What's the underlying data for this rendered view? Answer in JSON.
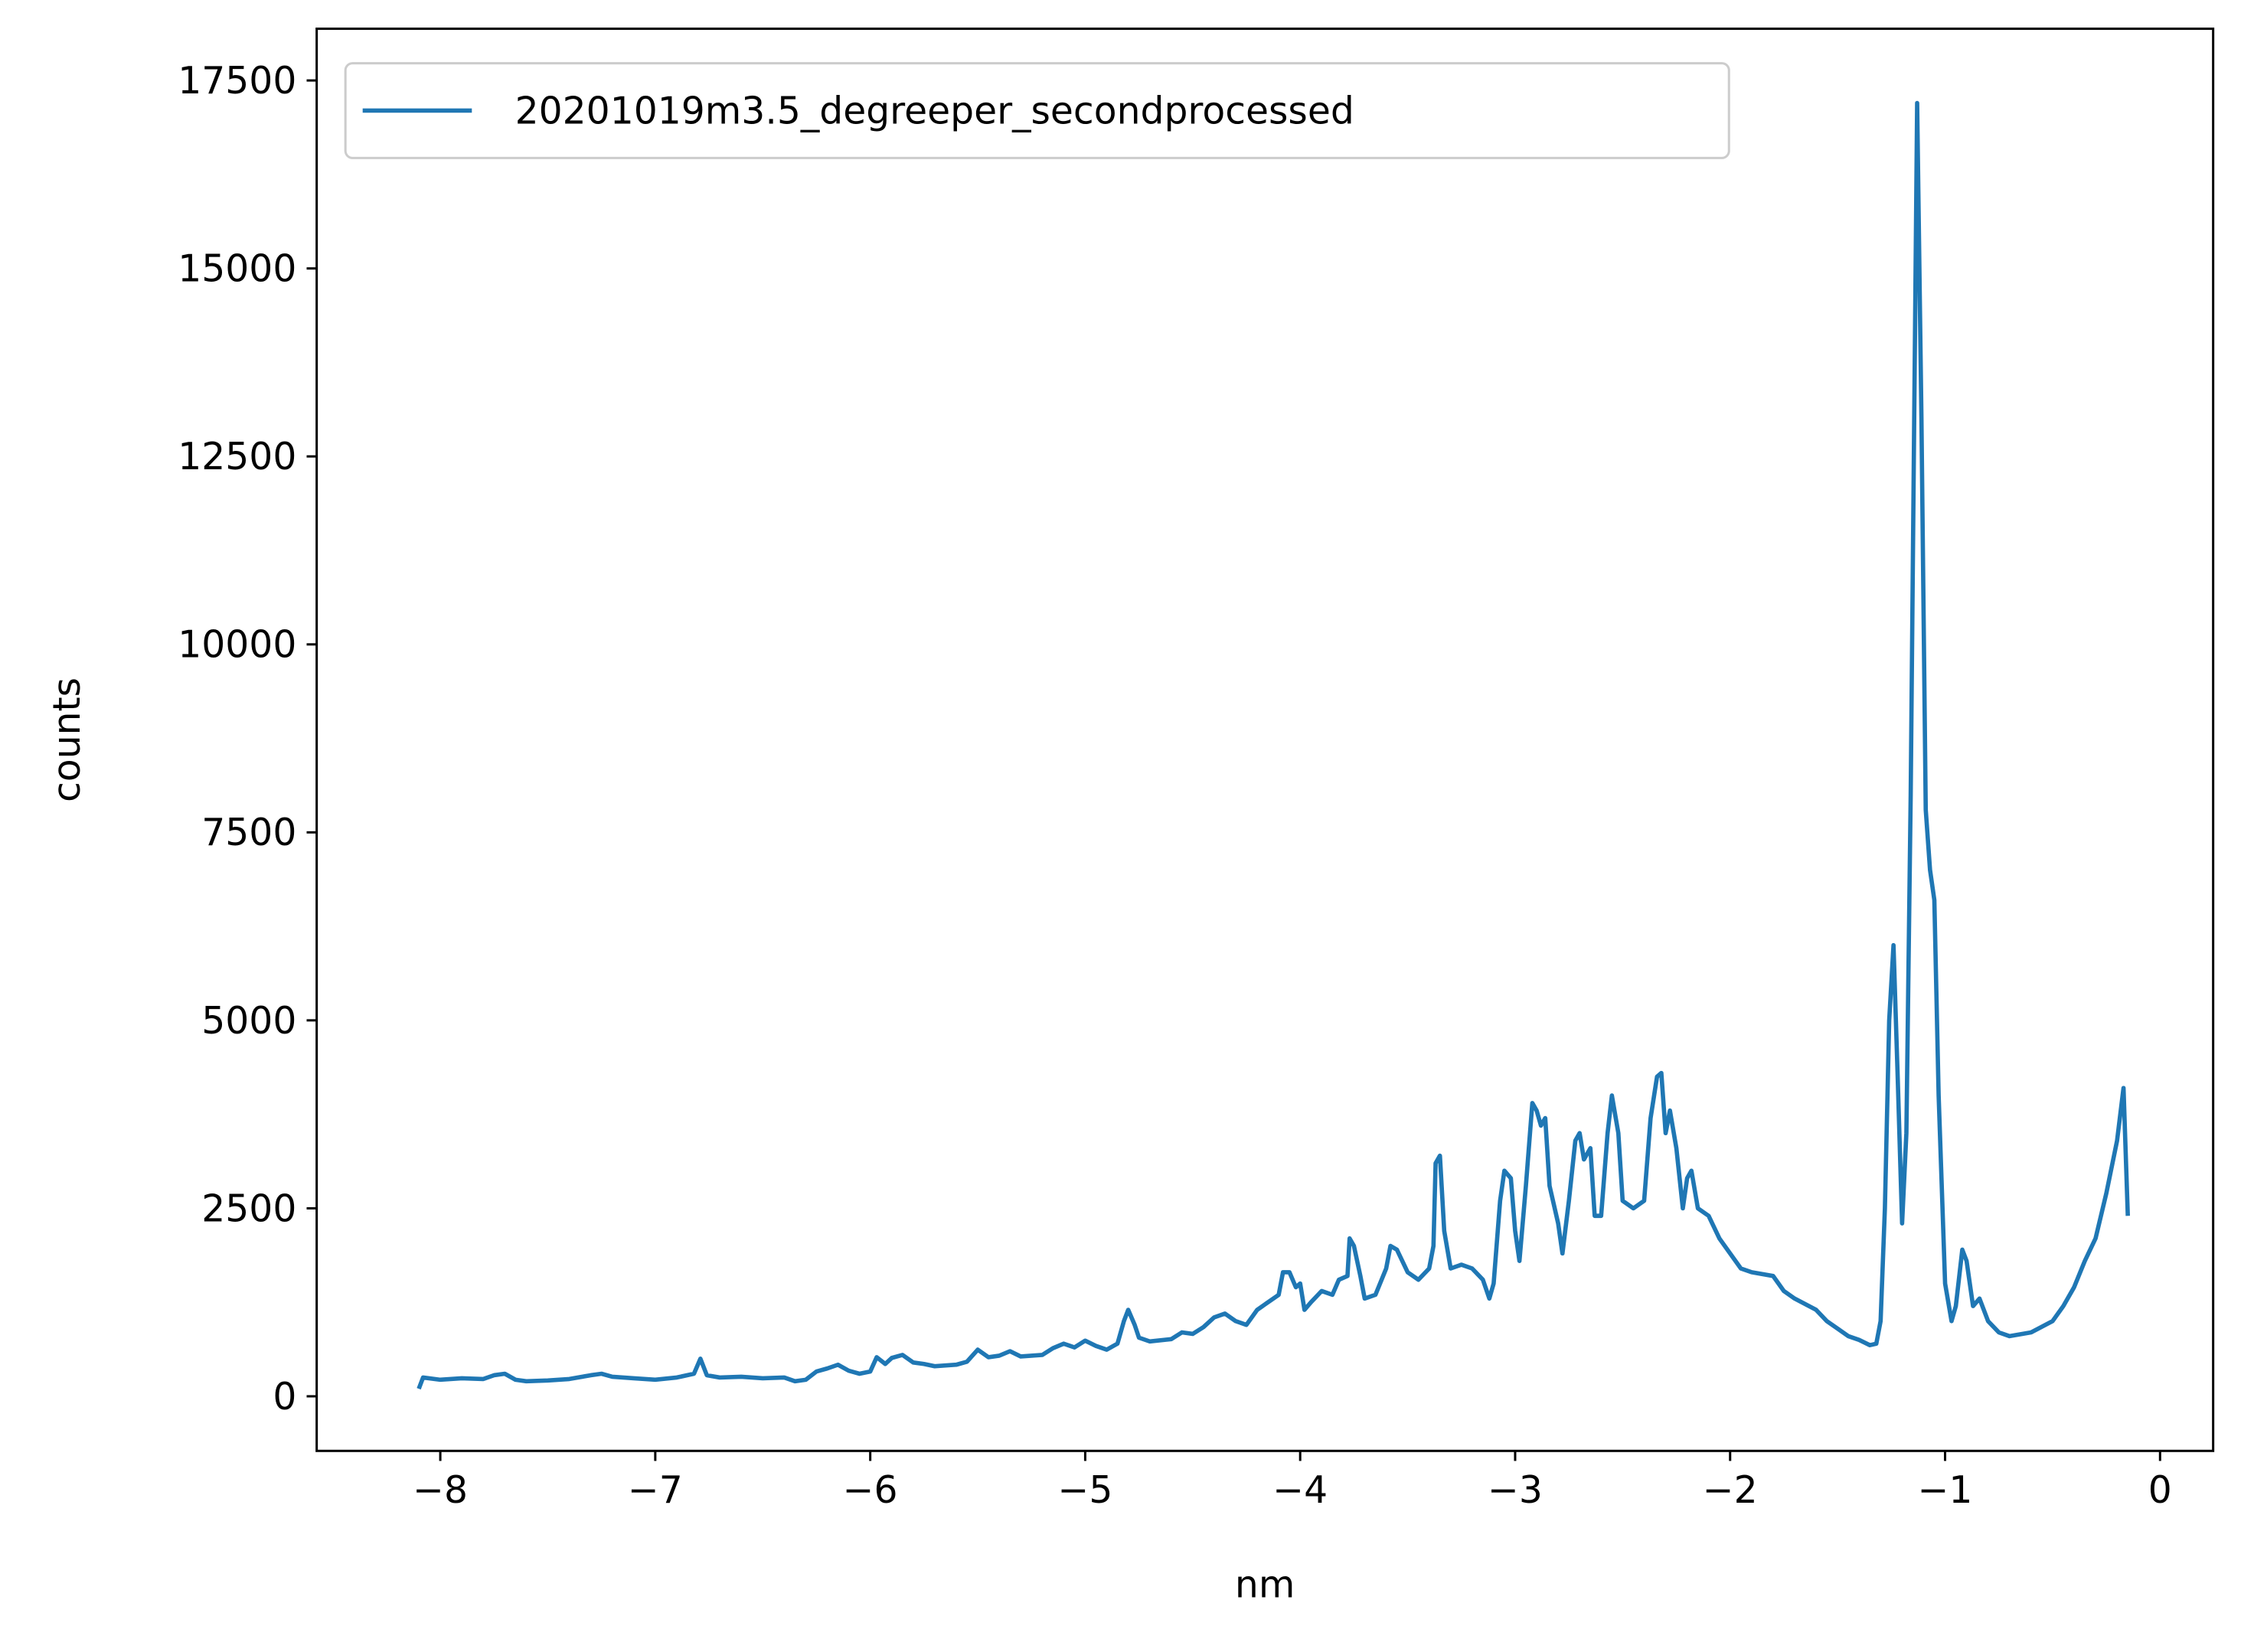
{
  "chart_data": {
    "type": "line",
    "xlabel": "nm",
    "ylabel": "counts",
    "xlim": [
      -8.575,
      0.247
    ],
    "ylim": [
      -726,
      18188
    ],
    "xticks": [
      {
        "value": -8,
        "label": "−8"
      },
      {
        "value": -7,
        "label": "−7"
      },
      {
        "value": -6,
        "label": "−6"
      },
      {
        "value": -5,
        "label": "−5"
      },
      {
        "value": -4,
        "label": "−4"
      },
      {
        "value": -3,
        "label": "−3"
      },
      {
        "value": -2,
        "label": "−2"
      },
      {
        "value": -1,
        "label": "−1"
      },
      0
    ],
    "yticks": [
      0,
      2500,
      5000,
      7500,
      10000,
      12500,
      15000,
      17500
    ],
    "legend": "upper left",
    "x": [
      -8.1,
      -8.08,
      -8.0,
      -7.9,
      -7.8,
      -7.75,
      -7.7,
      -7.65,
      -7.6,
      -7.5,
      -7.4,
      -7.3,
      -7.25,
      -7.2,
      -7.1,
      -7.0,
      -6.9,
      -6.82,
      -6.79,
      -6.76,
      -6.7,
      -6.6,
      -6.5,
      -6.4,
      -6.35,
      -6.3,
      -6.25,
      -6.2,
      -6.15,
      -6.1,
      -6.05,
      -6.0,
      -5.97,
      -5.93,
      -5.9,
      -5.85,
      -5.8,
      -5.75,
      -5.7,
      -5.6,
      -5.55,
      -5.5,
      -5.45,
      -5.4,
      -5.35,
      -5.3,
      -5.2,
      -5.15,
      -5.1,
      -5.05,
      -5.0,
      -4.95,
      -4.9,
      -4.85,
      -4.82,
      -4.8,
      -4.77,
      -4.75,
      -4.7,
      -4.6,
      -4.55,
      -4.5,
      -4.45,
      -4.4,
      -4.35,
      -4.3,
      -4.25,
      -4.2,
      -4.15,
      -4.1,
      -4.08,
      -4.05,
      -4.02,
      -4.0,
      -3.98,
      -3.95,
      -3.9,
      -3.85,
      -3.82,
      -3.78,
      -3.77,
      -3.75,
      -3.72,
      -3.7,
      -3.65,
      -3.6,
      -3.58,
      -3.55,
      -3.5,
      -3.45,
      -3.4,
      -3.38,
      -3.37,
      -3.35,
      -3.33,
      -3.3,
      -3.25,
      -3.2,
      -3.15,
      -3.12,
      -3.1,
      -3.07,
      -3.05,
      -3.02,
      -3.0,
      -2.98,
      -2.95,
      -2.92,
      -2.9,
      -2.88,
      -2.86,
      -2.84,
      -2.8,
      -2.78,
      -2.75,
      -2.72,
      -2.7,
      -2.68,
      -2.65,
      -2.63,
      -2.6,
      -2.57,
      -2.55,
      -2.52,
      -2.5,
      -2.45,
      -2.4,
      -2.37,
      -2.34,
      -2.32,
      -2.3,
      -2.28,
      -2.25,
      -2.22,
      -2.2,
      -2.18,
      -2.15,
      -2.1,
      -2.05,
      -2.0,
      -1.95,
      -1.9,
      -1.8,
      -1.75,
      -1.7,
      -1.6,
      -1.55,
      -1.5,
      -1.45,
      -1.4,
      -1.35,
      -1.32,
      -1.3,
      -1.28,
      -1.26,
      -1.24,
      -1.22,
      -1.2,
      -1.18,
      -1.16,
      -1.13,
      -1.11,
      -1.09,
      -1.07,
      -1.05,
      -1.03,
      -1.0,
      -0.97,
      -0.95,
      -0.92,
      -0.9,
      -0.87,
      -0.84,
      -0.8,
      -0.75,
      -0.7,
      -0.6,
      -0.5,
      -0.45,
      -0.4,
      -0.35,
      -0.3,
      -0.25,
      -0.2,
      -0.17,
      -0.15
    ],
    "series": [
      {
        "name": "20201019m3.5_degreeper_secondprocessed",
        "color": "#1f77b4",
        "values": [
          100,
          250,
          220,
          240,
          230,
          280,
          300,
          220,
          200,
          210,
          230,
          280,
          300,
          260,
          240,
          220,
          250,
          300,
          500,
          280,
          250,
          260,
          240,
          250,
          200,
          220,
          330,
          370,
          420,
          340,
          300,
          330,
          520,
          430,
          510,
          550,
          450,
          430,
          400,
          420,
          460,
          620,
          520,
          540,
          600,
          530,
          550,
          640,
          700,
          650,
          740,
          670,
          620,
          700,
          1000,
          1150,
          950,
          780,
          730,
          760,
          850,
          830,
          920,
          1050,
          1100,
          1000,
          950,
          1150,
          1250,
          1350,
          1650,
          1650,
          1450,
          1500,
          1150,
          1250,
          1400,
          1350,
          1550,
          1600,
          2100,
          2000,
          1600,
          1300,
          1350,
          1700,
          2000,
          1950,
          1650,
          1550,
          1700,
          2000,
          3100,
          3200,
          2200,
          1700,
          1750,
          1700,
          1550,
          1300,
          1500,
          2600,
          3000,
          2900,
          2200,
          1800,
          2800,
          3900,
          3800,
          3600,
          3700,
          2800,
          2300,
          1900,
          2600,
          3400,
          3500,
          3150,
          3300,
          2400,
          2400,
          3500,
          4000,
          3500,
          2600,
          2500,
          2600,
          3700,
          4250,
          4300,
          3500,
          3800,
          3300,
          2500,
          2900,
          3000,
          2500,
          2400,
          2100,
          1900,
          1700,
          1650,
          1600,
          1400,
          1300,
          1150,
          1000,
          900,
          800,
          750,
          680,
          700,
          1000,
          2500,
          5000,
          6000,
          4200,
          2300,
          3500,
          8000,
          17200,
          13000,
          7800,
          7000,
          6600,
          4000,
          1500,
          1000,
          1200,
          1950,
          1800,
          1200,
          1300,
          1000,
          850,
          800,
          850,
          1000,
          1200,
          1450,
          1800,
          2100,
          2700,
          3400,
          4100,
          2400
        ]
      }
    ]
  }
}
